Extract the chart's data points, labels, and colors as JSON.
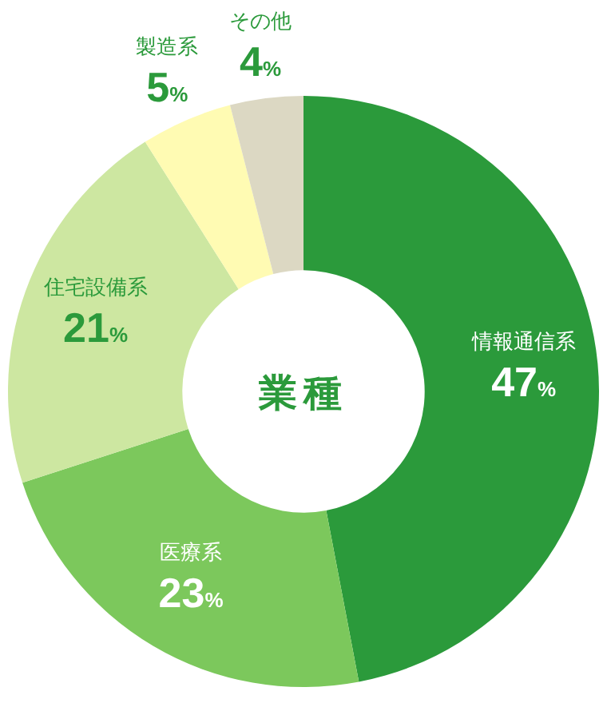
{
  "chart_data": {
    "type": "donut",
    "title": "業種",
    "categories": [
      "情報通信系",
      "医療系",
      "住宅設備系",
      "製造系",
      "その他"
    ],
    "values": [
      47,
      23,
      21,
      5,
      4
    ],
    "value_labels": [
      "47%",
      "23%",
      "21%",
      "5%",
      "4%"
    ],
    "colors": [
      "#2b9a3b",
      "#7cc85c",
      "#cde7a1",
      "#fffbb3",
      "#dcd8c3"
    ]
  }
}
